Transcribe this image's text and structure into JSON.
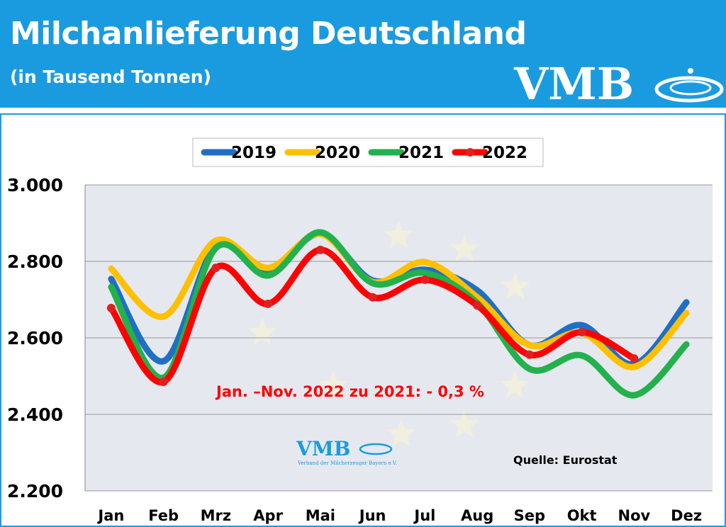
{
  "header": {
    "title": "Milchanlieferung Deutschland",
    "subtitle": "(in Tausend Tonnen)",
    "logo": "VMB"
  },
  "watermark": {
    "logo": "VMB",
    "tagline": "Verband der Milcherzeuger Bayern e.V."
  },
  "chart_data": {
    "type": "line",
    "categories": [
      "Jan",
      "Feb",
      "Mrz",
      "Apr",
      "Mai",
      "Jun",
      "Jul",
      "Aug",
      "Sep",
      "Okt",
      "Nov",
      "Dez"
    ],
    "ylim": [
      2200,
      3000
    ],
    "yticks": [
      "2.200",
      "2.400",
      "2.600",
      "2.800",
      "3.000"
    ],
    "ytick_values": [
      2200,
      2400,
      2600,
      2800,
      3000
    ],
    "grid": true,
    "legend_position": "top",
    "series": [
      {
        "name": "2019",
        "color": "#1f6fc4",
        "values": [
          2754,
          2539,
          2839,
          2776,
          2872,
          2750,
          2778,
          2724,
          2581,
          2633,
          2531,
          2693
        ]
      },
      {
        "name": "2020",
        "color": "#ffc000",
        "values": [
          2781,
          2656,
          2854,
          2783,
          2872,
          2746,
          2798,
          2706,
          2581,
          2613,
          2524,
          2665
        ]
      },
      {
        "name": "2021",
        "color": "#22b14c",
        "values": [
          2733,
          2496,
          2835,
          2763,
          2876,
          2743,
          2770,
          2691,
          2519,
          2554,
          2450,
          2583
        ]
      },
      {
        "name": "2022",
        "color": "#ff0000",
        "markers": true,
        "values": [
          2678,
          2485,
          2783,
          2689,
          2830,
          2706,
          2752,
          2685,
          2556,
          2615,
          2546,
          null
        ]
      }
    ],
    "annotation": "Jan. –Nov.  2022 zu 2021: - 0,3 %",
    "source": "Quelle: Eurostat"
  }
}
